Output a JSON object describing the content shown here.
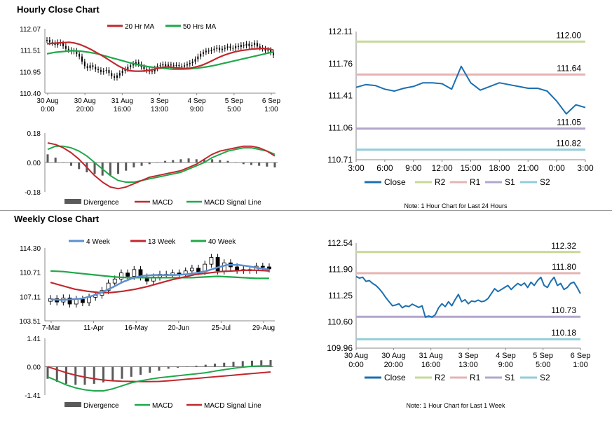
{
  "sections": {
    "hourly_title": "Hourly Close Chart",
    "weekly_title": "Weekly Close Chart"
  },
  "colors": {
    "ma_red": "#c0282d",
    "ma_green": "#1fa84a",
    "week4_blue": "#5b8fd1",
    "divergence_gray": "#5a5a5a",
    "close_blue": "#1b6fb0",
    "r2": "#c6d99a",
    "r1": "#e6b3b3",
    "s1": "#b3a6cd",
    "s2": "#92cdd9"
  },
  "chart_data": [
    {
      "id": "hourly_price",
      "type": "candlestick",
      "y_ticks": [
        "112.07",
        "111.51",
        "110.95",
        "110.40"
      ],
      "ylim": [
        110.4,
        112.07
      ],
      "x_ticks": [
        {
          "line1": "30 Aug",
          "line2": "0:00"
        },
        {
          "line1": "30 Aug",
          "line2": "20:00"
        },
        {
          "line1": "31 Aug",
          "line2": "16:00"
        },
        {
          "line1": "3 Sep",
          "line2": "13:00"
        },
        {
          "line1": "4 Sep",
          "line2": "9:00"
        },
        {
          "line1": "5 Sep",
          "line2": "5:00"
        },
        {
          "line1": "6 Sep",
          "line2": "1:00"
        }
      ],
      "legend": [
        "20 Hr MA",
        "50 Hrs MA"
      ],
      "close": [
        111.78,
        111.72,
        111.7,
        111.65,
        111.72,
        111.69,
        111.62,
        111.55,
        111.52,
        111.48,
        111.5,
        111.42,
        111.35,
        111.22,
        111.1,
        111.05,
        111.12,
        111.08,
        111.02,
        111.0,
        110.95,
        110.98,
        111.0,
        110.92,
        110.84,
        110.8,
        110.86,
        110.92,
        110.98,
        111.02,
        111.08,
        111.12,
        111.16,
        111.2,
        111.15,
        111.08,
        111.02,
        110.99,
        110.96,
        110.97,
        111.04,
        111.1,
        111.12,
        111.15,
        111.1,
        111.14,
        111.12,
        111.11,
        111.13,
        111.1,
        111.09,
        111.12,
        111.15,
        111.18,
        111.22,
        111.28,
        111.35,
        111.42,
        111.46,
        111.5,
        111.49,
        111.52,
        111.55,
        111.58,
        111.52,
        111.55,
        111.58,
        111.61,
        111.57,
        111.56,
        111.62,
        111.6,
        111.65,
        111.63,
        111.68,
        111.62,
        111.65,
        111.7,
        111.61,
        111.58,
        111.55,
        111.5,
        111.52,
        111.45,
        111.38
      ],
      "ma20": [
        111.68,
        111.69,
        111.7,
        111.71,
        111.72,
        111.7,
        111.66,
        111.6,
        111.53,
        111.45,
        111.37,
        111.28,
        111.19,
        111.1,
        111.03,
        110.98,
        110.97,
        110.97,
        110.98,
        111.0,
        111.04,
        111.07,
        111.08,
        111.06,
        111.05,
        111.04,
        111.05,
        111.08,
        111.12,
        111.18,
        111.25,
        111.32,
        111.38,
        111.43,
        111.47,
        111.5,
        111.52,
        111.54,
        111.55,
        111.56,
        111.55,
        111.52
      ],
      "ma50": [
        111.42,
        111.46,
        111.48,
        111.5,
        111.49,
        111.46,
        111.42,
        111.36,
        111.3,
        111.24,
        111.18,
        111.13,
        111.09,
        111.06,
        111.04,
        111.02,
        111.02,
        111.03,
        111.05,
        111.08,
        111.12,
        111.17,
        111.22,
        111.27,
        111.32,
        111.37,
        111.42,
        111.47
      ]
    },
    {
      "id": "hourly_macd",
      "type": "macd",
      "y_ticks": [
        "0.18",
        "0.00",
        "-0.18"
      ],
      "ylim": [
        -0.18,
        0.18
      ],
      "legend": [
        "Divergence",
        "MACD",
        "MACD Signal Line"
      ],
      "macd": [
        0.12,
        0.11,
        0.09,
        0.06,
        0.02,
        -0.03,
        -0.08,
        -0.12,
        -0.15,
        -0.16,
        -0.15,
        -0.13,
        -0.11,
        -0.09,
        -0.08,
        -0.07,
        -0.06,
        -0.05,
        -0.03,
        -0.01,
        0.02,
        0.05,
        0.07,
        0.08,
        0.09,
        0.1,
        0.1,
        0.09,
        0.07,
        0.04
      ],
      "signal": [
        0.08,
        0.1,
        0.1,
        0.09,
        0.07,
        0.04,
        0.0,
        -0.04,
        -0.08,
        -0.11,
        -0.12,
        -0.12,
        -0.11,
        -0.1,
        -0.09,
        -0.08,
        -0.07,
        -0.06,
        -0.04,
        -0.02,
        0.0,
        0.03,
        0.05,
        0.07,
        0.08,
        0.09,
        0.09,
        0.08,
        0.07,
        0.05
      ],
      "divergence": [
        0.05,
        0.03,
        0.0,
        -0.02,
        -0.04,
        -0.06,
        -0.07,
        -0.08,
        -0.08,
        -0.07,
        -0.05,
        -0.03,
        -0.02,
        -0.01,
        0.0,
        0.01,
        0.015,
        0.02,
        0.025,
        0.02,
        0.02,
        0.02,
        0.015,
        0.01,
        0.0,
        -0.01,
        -0.015,
        -0.02,
        -0.025,
        -0.03
      ]
    },
    {
      "id": "hourly_levels",
      "type": "line",
      "title_note": "Note: 1 Hour Chart for Last 24 Hours",
      "y_ticks": [
        "112.11",
        "111.76",
        "111.41",
        "111.06",
        "110.71"
      ],
      "ylim": [
        110.71,
        112.11
      ],
      "x_ticks": [
        "3:00",
        "6:00",
        "9:00",
        "12:00",
        "15:00",
        "18:00",
        "21:00",
        "0:00",
        "3:00"
      ],
      "close": [
        111.5,
        111.53,
        111.52,
        111.48,
        111.46,
        111.49,
        111.51,
        111.55,
        111.55,
        111.54,
        111.48,
        111.73,
        111.55,
        111.47,
        111.51,
        111.55,
        111.53,
        111.51,
        111.49,
        111.49,
        111.46,
        111.35,
        111.21,
        111.31,
        111.28
      ],
      "levels": [
        {
          "name": "R2",
          "value": 112.0,
          "label": "112.00"
        },
        {
          "name": "R1",
          "value": 111.64,
          "label": "111.64"
        },
        {
          "name": "S1",
          "value": 111.05,
          "label": "111.05"
        },
        {
          "name": "S2",
          "value": 110.82,
          "label": "110.82"
        }
      ],
      "legend": [
        "Close",
        "R2",
        "R1",
        "S1",
        "S2"
      ]
    },
    {
      "id": "weekly_price",
      "type": "candlestick",
      "y_ticks": [
        "114.30",
        "110.71",
        "107.11",
        "103.51"
      ],
      "ylim": [
        103.51,
        114.3
      ],
      "x_ticks": [
        "7-Mar",
        "11-Apr",
        "16-May",
        "20-Jun",
        "25-Jul",
        "29-Aug"
      ],
      "legend": [
        "4 Week",
        "13 Week",
        "40 Week"
      ],
      "close": [
        106.8,
        106.3,
        106.9,
        106.0,
        106.7,
        106.2,
        107.0,
        107.3,
        108.0,
        109.1,
        109.7,
        110.6,
        110.1,
        111.1,
        110.0,
        109.4,
        110.0,
        110.4,
        110.3,
        110.6,
        110.4,
        110.9,
        111.3,
        110.8,
        111.9,
        112.9,
        110.9,
        112.1,
        111.5,
        111.0,
        111.1,
        111.0,
        111.6,
        111.5,
        111.2
      ],
      "w4": [
        106.7,
        106.6,
        106.7,
        106.8,
        107.2,
        107.8,
        108.5,
        109.3,
        109.9,
        110.2,
        110.3,
        110.3,
        110.3,
        110.4,
        110.6,
        110.9,
        111.4,
        111.8,
        111.8,
        111.6,
        111.3,
        111.1
      ],
      "w13": [
        109.2,
        108.7,
        108.2,
        107.9,
        107.7,
        107.7,
        107.9,
        108.2,
        108.6,
        109.1,
        109.6,
        110.0,
        110.4,
        110.6,
        110.8,
        110.9,
        111.0,
        111.0,
        110.9
      ],
      "w40": [
        110.9,
        110.8,
        110.6,
        110.4,
        110.2,
        110.0,
        109.9,
        109.9,
        109.9,
        109.9,
        109.9,
        109.9,
        110.0,
        110.1,
        110.0,
        109.9,
        109.8,
        109.8
      ]
    },
    {
      "id": "weekly_macd",
      "type": "macd",
      "y_ticks": [
        "1.41",
        "0.00",
        "-1.41"
      ],
      "ylim": [
        -1.41,
        1.41
      ],
      "legend": [
        "Divergence",
        "MACD",
        "MACD Signal Line"
      ],
      "macd": [
        -0.5,
        -0.7,
        -0.9,
        -1.05,
        -1.15,
        -1.2,
        -1.2,
        -1.1,
        -0.95,
        -0.8,
        -0.7,
        -0.62,
        -0.55,
        -0.5,
        -0.45,
        -0.4,
        -0.35,
        -0.3,
        -0.22,
        -0.15,
        -0.08,
        -0.02,
        0.02,
        0.04,
        0.05
      ],
      "signal": [
        0.0,
        -0.15,
        -0.3,
        -0.42,
        -0.52,
        -0.6,
        -0.66,
        -0.7,
        -0.72,
        -0.73,
        -0.74,
        -0.74,
        -0.73,
        -0.7,
        -0.66,
        -0.62,
        -0.58,
        -0.54,
        -0.5,
        -0.46,
        -0.42,
        -0.38,
        -0.34,
        -0.3,
        -0.26
      ],
      "divergence": [
        -0.6,
        -0.75,
        -0.85,
        -0.9,
        -0.9,
        -0.85,
        -0.78,
        -0.7,
        -0.6,
        -0.5,
        -0.4,
        -0.3,
        -0.2,
        -0.1,
        -0.05,
        0.0,
        0.05,
        0.1,
        0.15,
        0.2,
        0.24,
        0.28,
        0.3,
        0.32,
        0.33
      ]
    },
    {
      "id": "weekly_levels",
      "type": "line",
      "title_note": "Note: 1 Hour Chart for Last 1 Week",
      "y_ticks": [
        "112.54",
        "111.90",
        "111.25",
        "110.60",
        "109.96"
      ],
      "ylim": [
        109.96,
        112.54
      ],
      "x_ticks": [
        {
          "line1": "30 Aug",
          "line2": "0:00"
        },
        {
          "line1": "30 Aug",
          "line2": "20:00"
        },
        {
          "line1": "31 Aug",
          "line2": "16:00"
        },
        {
          "line1": "3 Sep",
          "line2": "13:00"
        },
        {
          "line1": "4 Sep",
          "line2": "9:00"
        },
        {
          "line1": "5 Sep",
          "line2": "5:00"
        },
        {
          "line1": "6 Sep",
          "line2": "1:00"
        }
      ],
      "close": [
        111.72,
        111.68,
        111.7,
        111.6,
        111.62,
        111.55,
        111.5,
        111.42,
        111.32,
        111.2,
        111.1,
        111.0,
        111.02,
        111.05,
        110.95,
        111.0,
        110.98,
        111.04,
        111.0,
        110.96,
        111.0,
        110.72,
        110.75,
        110.72,
        110.78,
        110.95,
        111.05,
        110.98,
        111.1,
        111.0,
        111.15,
        111.28,
        111.1,
        111.15,
        111.05,
        111.12,
        111.1,
        111.14,
        111.1,
        111.12,
        111.18,
        111.3,
        111.42,
        111.35,
        111.4,
        111.45,
        111.5,
        111.4,
        111.48,
        111.55,
        111.5,
        111.56,
        111.45,
        111.58,
        111.5,
        111.62,
        111.7,
        111.5,
        111.45,
        111.6,
        111.7,
        111.5,
        111.55,
        111.4,
        111.45,
        111.55,
        111.58,
        111.45,
        111.3
      ],
      "levels": [
        {
          "name": "R2",
          "value": 112.32,
          "label": "112.32"
        },
        {
          "name": "R1",
          "value": 111.8,
          "label": "111.80"
        },
        {
          "name": "S1",
          "value": 110.73,
          "label": "110.73"
        },
        {
          "name": "S2",
          "value": 110.18,
          "label": "110.18"
        }
      ],
      "legend": [
        "Close",
        "R2",
        "R1",
        "S1",
        "S2"
      ]
    }
  ]
}
